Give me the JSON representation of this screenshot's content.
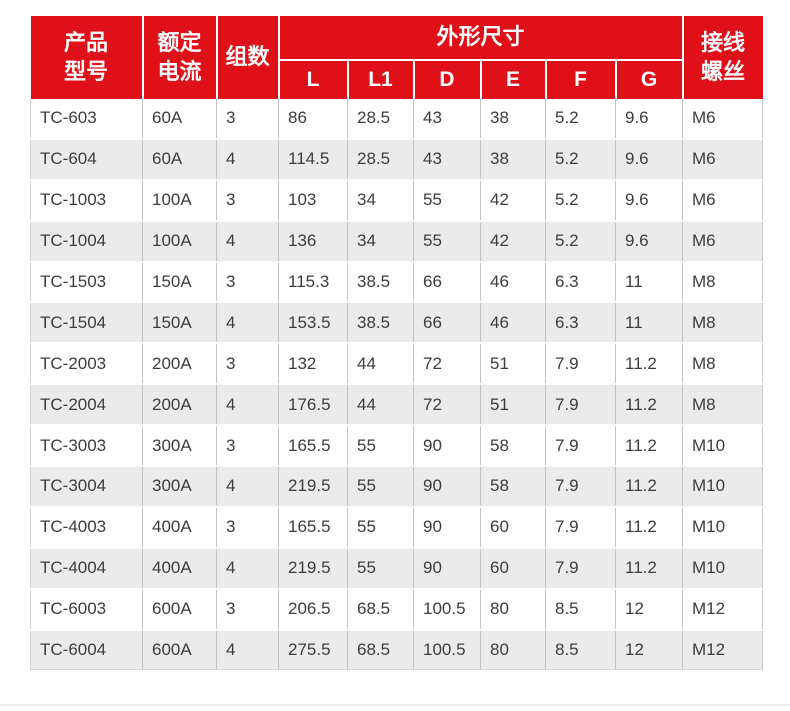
{
  "colors": {
    "header_bg": "#e01019",
    "header_text": "#ffffff",
    "row_bg": "#ffffff",
    "row_alt_bg": "#ebebeb",
    "cell_border": "#c3c3c3",
    "body_text": "#3d3d3d"
  },
  "table": {
    "header": {
      "product_model": "产品\n型号",
      "rated_current": "额定\n电流",
      "groups": "组数",
      "dimensions": "外形尺寸",
      "dim_cols": [
        "L",
        "L1",
        "D",
        "E",
        "F",
        "G"
      ],
      "terminal_screw": "接线\n螺丝"
    },
    "rows": [
      [
        "TC-603",
        "60A",
        "3",
        "86",
        "28.5",
        "43",
        "38",
        "5.2",
        "9.6",
        "M6"
      ],
      [
        "TC-604",
        "60A",
        "4",
        "114.5",
        "28.5",
        "43",
        "38",
        "5.2",
        "9.6",
        "M6"
      ],
      [
        "TC-1003",
        "100A",
        "3",
        "103",
        "34",
        "55",
        "42",
        "5.2",
        "9.6",
        "M6"
      ],
      [
        "TC-1004",
        "100A",
        "4",
        "136",
        "34",
        "55",
        "42",
        "5.2",
        "9.6",
        "M6"
      ],
      [
        "TC-1503",
        "150A",
        "3",
        "115.3",
        "38.5",
        "66",
        "46",
        "6.3",
        "11",
        "M8"
      ],
      [
        "TC-1504",
        "150A",
        "4",
        "153.5",
        "38.5",
        "66",
        "46",
        "6.3",
        "11",
        "M8"
      ],
      [
        "TC-2003",
        "200A",
        "3",
        "132",
        "44",
        "72",
        "51",
        "7.9",
        "11.2",
        "M8"
      ],
      [
        "TC-2004",
        "200A",
        "4",
        "176.5",
        "44",
        "72",
        "51",
        "7.9",
        "11.2",
        "M8"
      ],
      [
        "TC-3003",
        "300A",
        "3",
        "165.5",
        "55",
        "90",
        "58",
        "7.9",
        "11.2",
        "M10"
      ],
      [
        "TC-3004",
        "300A",
        "4",
        "219.5",
        "55",
        "90",
        "58",
        "7.9",
        "11.2",
        "M10"
      ],
      [
        "TC-4003",
        "400A",
        "3",
        "165.5",
        "55",
        "90",
        "60",
        "7.9",
        "11.2",
        "M10"
      ],
      [
        "TC-4004",
        "400A",
        "4",
        "219.5",
        "55",
        "90",
        "60",
        "7.9",
        "11.2",
        "M10"
      ],
      [
        "TC-6003",
        "600A",
        "3",
        "206.5",
        "68.5",
        "100.5",
        "80",
        "8.5",
        "12",
        "M12"
      ],
      [
        "TC-6004",
        "600A",
        "4",
        "275.5",
        "68.5",
        "100.5",
        "80",
        "8.5",
        "12",
        "M12"
      ]
    ]
  }
}
